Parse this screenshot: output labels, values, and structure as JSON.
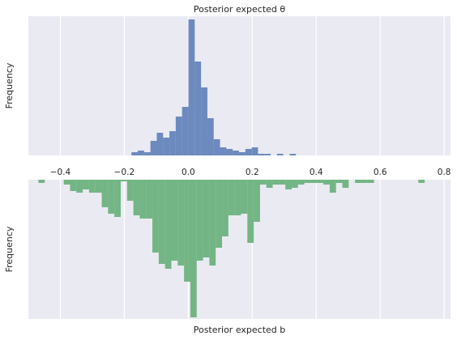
{
  "chart_data": [
    {
      "type": "histogram",
      "title": "Posterior expected θ",
      "ylabel": "Frequency",
      "xlabel": "",
      "x_tick_labels": [
        "−0.4",
        "−0.2",
        "0.0",
        "0.2",
        "0.4",
        "0.6",
        "0.8"
      ],
      "xlim": [
        -0.5,
        0.82
      ],
      "grid": true,
      "y_ticks_shown": false,
      "color": "#4c72b0",
      "bin_width": 0.0198,
      "bars": [
        {
          "x": -0.1777,
          "count": 2
        },
        {
          "x": -0.1579,
          "count": 3
        },
        {
          "x": -0.1381,
          "count": 2
        },
        {
          "x": -0.1183,
          "count": 9
        },
        {
          "x": -0.0985,
          "count": 14
        },
        {
          "x": -0.0788,
          "count": 11
        },
        {
          "x": -0.059,
          "count": 15
        },
        {
          "x": -0.0392,
          "count": 24
        },
        {
          "x": -0.0194,
          "count": 30
        },
        {
          "x": 0.0004,
          "count": 84
        },
        {
          "x": 0.0202,
          "count": 58
        },
        {
          "x": 0.04,
          "count": 42
        },
        {
          "x": 0.0598,
          "count": 23
        },
        {
          "x": 0.0796,
          "count": 10
        },
        {
          "x": 0.0994,
          "count": 5
        },
        {
          "x": 0.1191,
          "count": 4
        },
        {
          "x": 0.1389,
          "count": 3
        },
        {
          "x": 0.1587,
          "count": 2
        },
        {
          "x": 0.1785,
          "count": 4
        },
        {
          "x": 0.1983,
          "count": 5
        },
        {
          "x": 0.2181,
          "count": 1
        },
        {
          "x": 0.2379,
          "count": 1
        },
        {
          "x": 0.2577,
          "count": 0
        },
        {
          "x": 0.2774,
          "count": 1
        },
        {
          "x": 0.2972,
          "count": 0
        },
        {
          "x": 0.317,
          "count": 1
        }
      ],
      "ymax": 86
    },
    {
      "type": "histogram",
      "title": "",
      "ylabel": "Frequency",
      "xlabel": "Posterior expected b",
      "x_tick_labels": [],
      "xlim": [
        -0.5,
        0.82
      ],
      "grid": true,
      "y_ticks_shown": false,
      "y_inverted": true,
      "color": "#55a868",
      "bin_width": 0.0198,
      "bars": [
        {
          "x": -0.4686,
          "count": 2
        },
        {
          "x": -0.3894,
          "count": 3
        },
        {
          "x": -0.3696,
          "count": 7
        },
        {
          "x": -0.3498,
          "count": 8
        },
        {
          "x": -0.33,
          "count": 6
        },
        {
          "x": -0.3102,
          "count": 8
        },
        {
          "x": -0.2904,
          "count": 8
        },
        {
          "x": -0.2706,
          "count": 17
        },
        {
          "x": -0.2508,
          "count": 21
        },
        {
          "x": -0.231,
          "count": 23
        },
        {
          "x": -0.2112,
          "count": 1
        },
        {
          "x": -0.1914,
          "count": 13
        },
        {
          "x": -0.1716,
          "count": 22
        },
        {
          "x": -0.1518,
          "count": 24
        },
        {
          "x": -0.132,
          "count": 24
        },
        {
          "x": -0.1122,
          "count": 45
        },
        {
          "x": -0.0924,
          "count": 52
        },
        {
          "x": -0.0726,
          "count": 55
        },
        {
          "x": -0.0528,
          "count": 50
        },
        {
          "x": -0.033,
          "count": 53
        },
        {
          "x": -0.0132,
          "count": 63
        },
        {
          "x": 0.0066,
          "count": 85
        },
        {
          "x": 0.0264,
          "count": 50
        },
        {
          "x": 0.0462,
          "count": 48
        },
        {
          "x": 0.066,
          "count": 53
        },
        {
          "x": 0.0858,
          "count": 42
        },
        {
          "x": 0.1056,
          "count": 35
        },
        {
          "x": 0.1254,
          "count": 22
        },
        {
          "x": 0.1452,
          "count": 22
        },
        {
          "x": 0.165,
          "count": 21
        },
        {
          "x": 0.1848,
          "count": 39
        },
        {
          "x": 0.2046,
          "count": 26
        },
        {
          "x": 0.2244,
          "count": 3
        },
        {
          "x": 0.2442,
          "count": 5
        },
        {
          "x": 0.264,
          "count": 3
        },
        {
          "x": 0.2838,
          "count": 3
        },
        {
          "x": 0.3036,
          "count": 6
        },
        {
          "x": 0.3234,
          "count": 5
        },
        {
          "x": 0.3432,
          "count": 3
        },
        {
          "x": 0.363,
          "count": 2
        },
        {
          "x": 0.3828,
          "count": 2
        },
        {
          "x": 0.4026,
          "count": 2
        },
        {
          "x": 0.4224,
          "count": 3
        },
        {
          "x": 0.4422,
          "count": 8
        },
        {
          "x": 0.462,
          "count": 2
        },
        {
          "x": 0.4818,
          "count": 5
        },
        {
          "x": 0.5214,
          "count": 2
        },
        {
          "x": 0.5412,
          "count": 2
        },
        {
          "x": 0.561,
          "count": 2
        },
        {
          "x": 0.7194,
          "count": 2
        }
      ],
      "ymax": 86
    }
  ]
}
